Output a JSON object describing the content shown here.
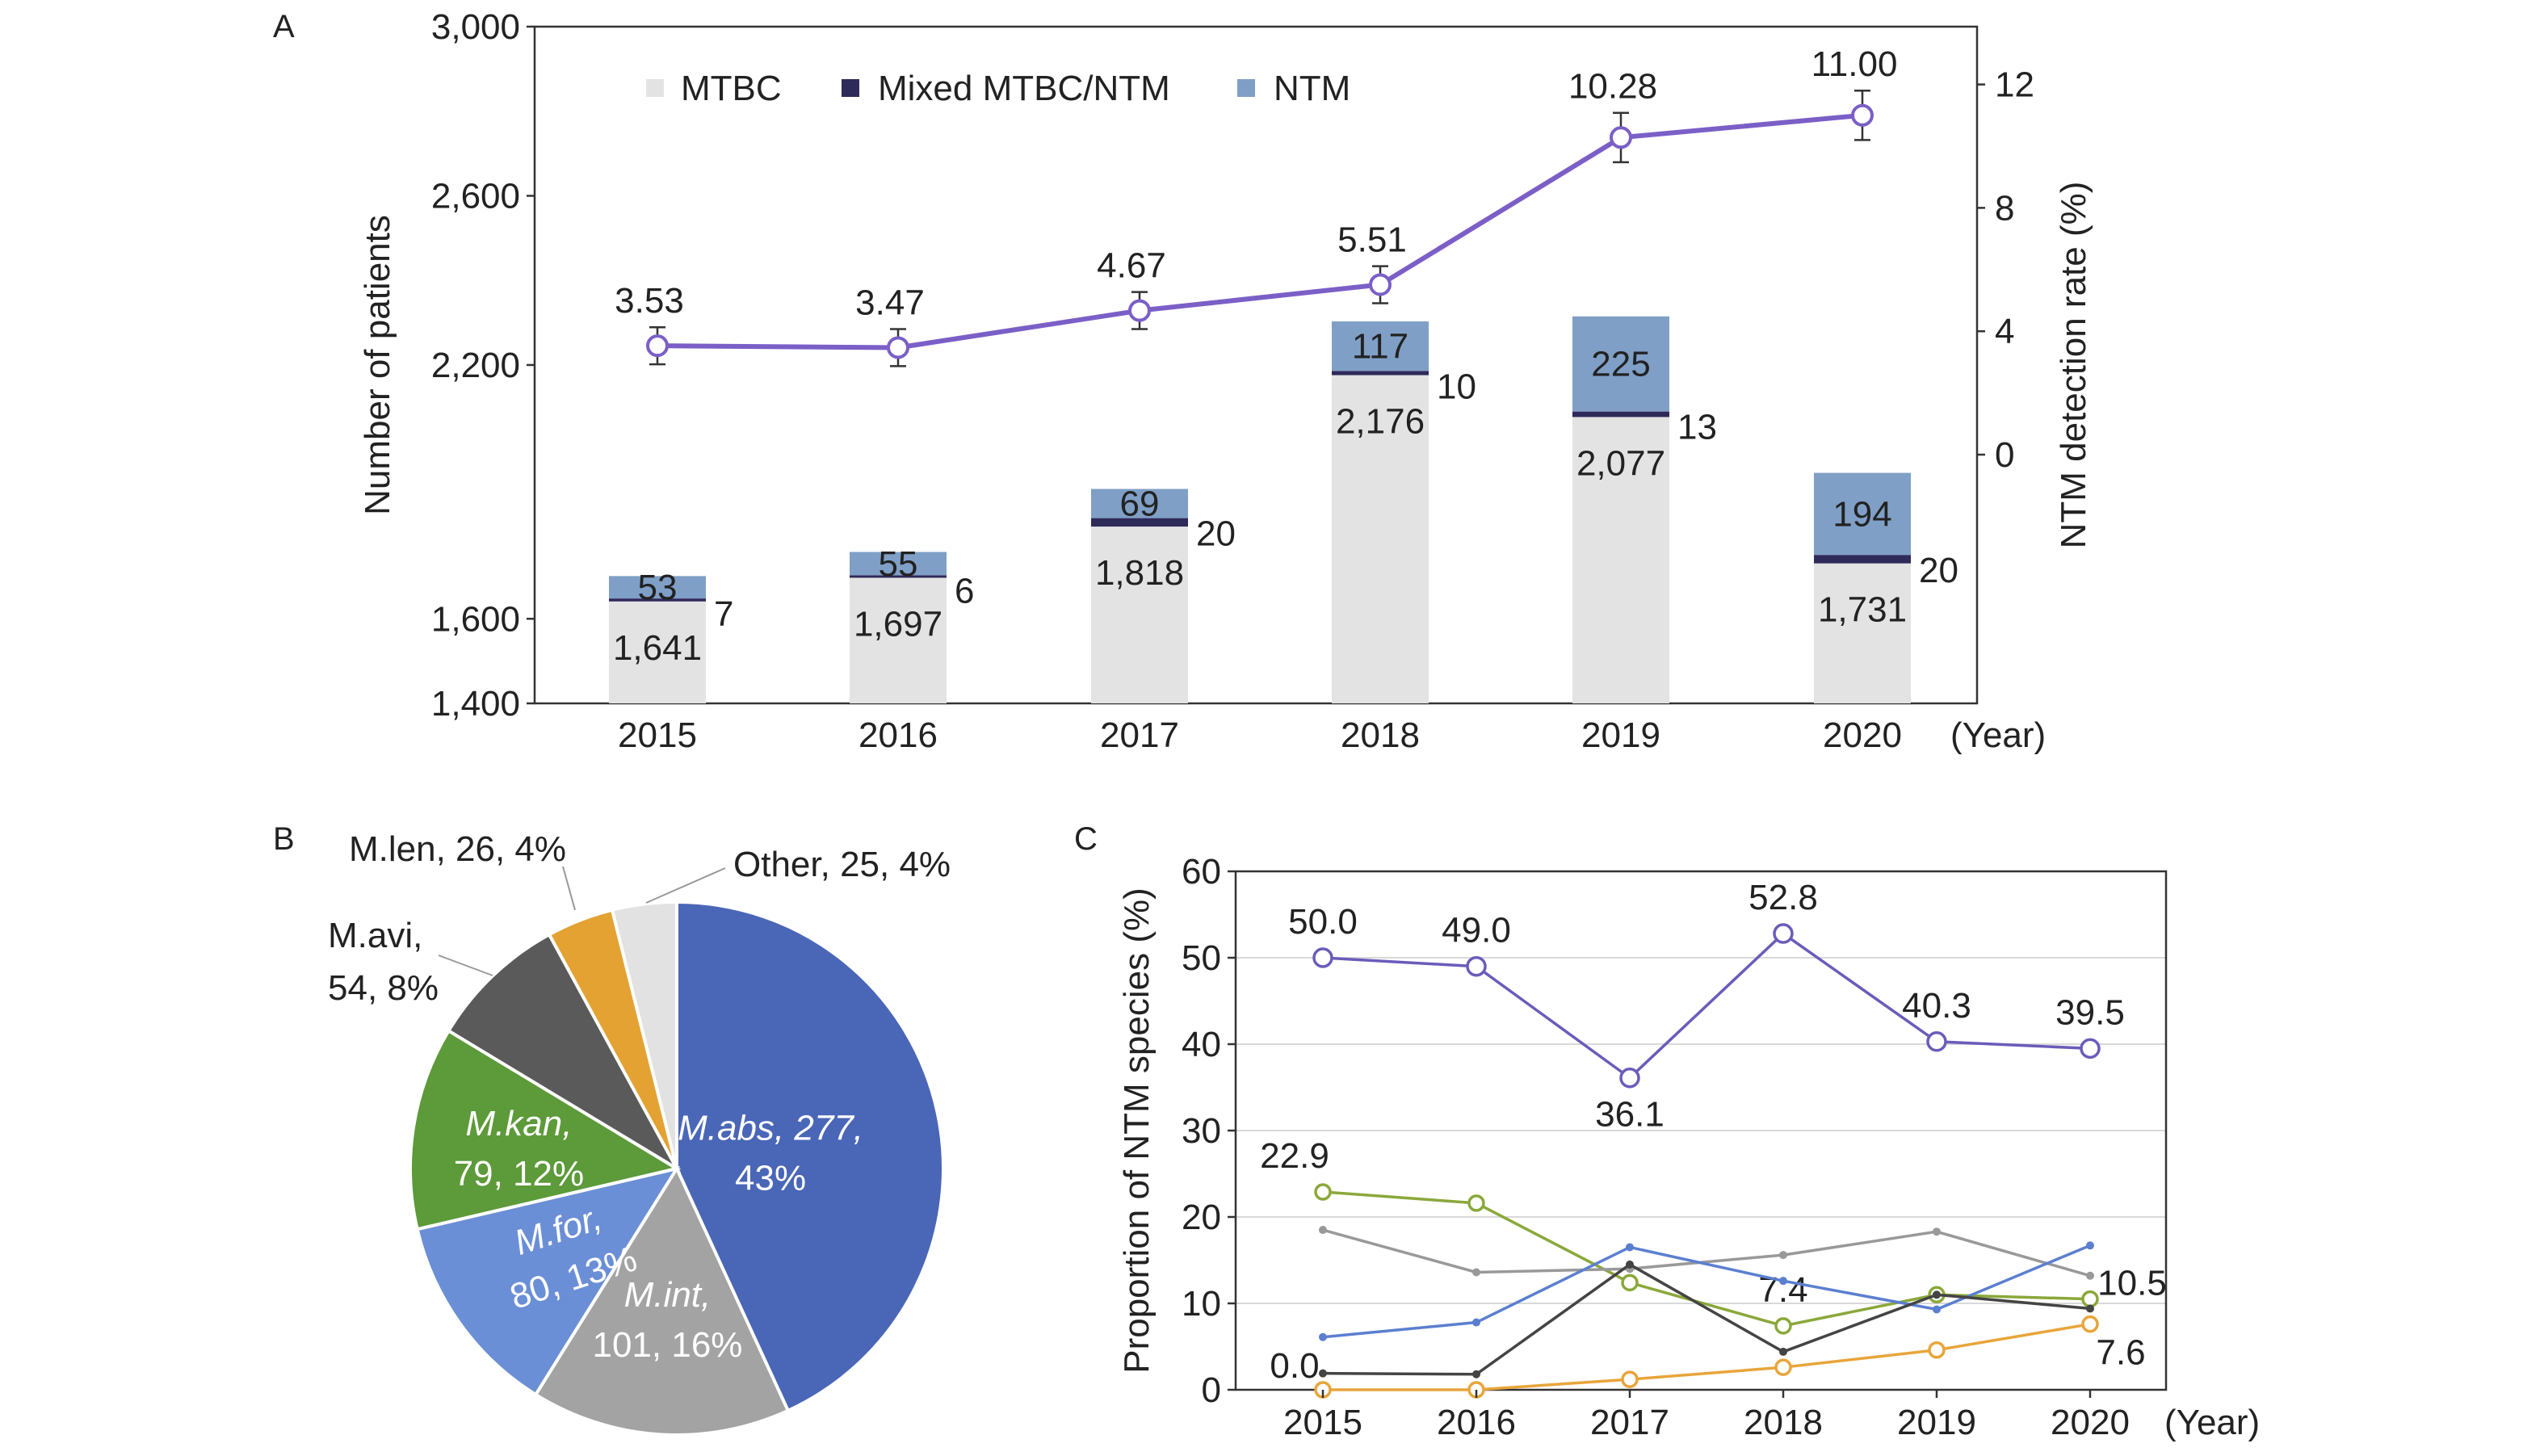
{
  "chart_data": [
    {
      "panel": "A",
      "type": "bar",
      "categories": [
        "2015",
        "2016",
        "2017",
        "2018",
        "2019",
        "2020"
      ],
      "x_unit": "(Year)",
      "ylabel": "Number of patients",
      "y2label": "NTM detection rate (%)",
      "ylim": [
        1400,
        3000
      ],
      "yticks": [
        "1,400",
        "1,600",
        "2,200",
        "2,600",
        "3,000"
      ],
      "yticks_values": [
        1400,
        1600,
        2200,
        2600,
        3000
      ],
      "y2ticks": [
        "0",
        "4",
        "8",
        "12"
      ],
      "y2ticks_values": [
        0,
        4,
        8,
        12
      ],
      "stacked": true,
      "legend_position": "top",
      "series": [
        {
          "name": "MTBC",
          "color": "#e3e3e3",
          "values": [
            1641,
            1697,
            1818,
            2176,
            2077,
            1731
          ],
          "labels": [
            "1,641",
            "1,697",
            "1,818",
            "2,176",
            "2,077",
            "1,731"
          ]
        },
        {
          "name": "Mixed MTBC/NTM",
          "color": "#2e2a5a",
          "values": [
            7,
            6,
            20,
            10,
            13,
            20
          ],
          "labels": [
            "7",
            "6",
            "20",
            "10",
            "13",
            "20"
          ]
        },
        {
          "name": "NTM",
          "color": "#7f9fc6",
          "values": [
            53,
            55,
            69,
            117,
            225,
            194
          ],
          "labels": [
            "53",
            "55",
            "69",
            "117",
            "225",
            "194"
          ]
        }
      ],
      "rate_line": {
        "color": "#7b5fc7",
        "values": [
          3.53,
          3.47,
          4.67,
          5.51,
          10.28,
          11.0
        ],
        "labels": [
          "3.53",
          "3.47",
          "4.67",
          "5.51",
          "10.28",
          "11.00"
        ],
        "error": [
          0.6,
          0.6,
          0.6,
          0.6,
          0.8,
          0.8
        ]
      }
    },
    {
      "panel": "B",
      "type": "pie",
      "slices": [
        {
          "species": "M.abs",
          "count": 277,
          "percent": 43,
          "color": "#4a66b7",
          "label_lines": [
            "M.abs, 277,",
            "43%"
          ]
        },
        {
          "species": "M.int",
          "count": 101,
          "percent": 16,
          "color": "#a3a3a3",
          "label_lines": [
            "M.int,",
            "101,  16%"
          ]
        },
        {
          "species": "M.for",
          "count": 80,
          "percent": 13,
          "color": "#6b8fd6",
          "label_lines": [
            "M.for,",
            "80, 13%"
          ]
        },
        {
          "species": "M.kan",
          "count": 79,
          "percent": 12,
          "color": "#5d9a3a",
          "label_lines": [
            "M.kan,",
            "79,  12%"
          ]
        },
        {
          "species": "M.avi",
          "count": 54,
          "percent": 8,
          "color": "#5a5a5a",
          "label_lines": [
            "M.avi,",
            "54, 8%"
          ]
        },
        {
          "species": "M.len",
          "count": 26,
          "percent": 4,
          "color": "#e3a232",
          "label_lines": [
            "M.len, 26, 4%"
          ]
        },
        {
          "species": "Other",
          "count": 25,
          "percent": 4,
          "color": "#e2e2e2",
          "label_lines": [
            "Other, 25, 4%"
          ]
        }
      ]
    },
    {
      "panel": "C",
      "type": "line",
      "x": [
        "2015",
        "2016",
        "2017",
        "2018",
        "2019",
        "2020"
      ],
      "x_unit": "(Year)",
      "ylabel": "Proportion of NTM species (%)",
      "ylim": [
        0,
        60
      ],
      "yticks": [
        "0",
        "10",
        "20",
        "30",
        "40",
        "50",
        "60"
      ],
      "grid": true,
      "series": [
        {
          "color": "#6a5cba",
          "marker": "circle",
          "values": [
            50.0,
            49.0,
            36.1,
            52.8,
            40.3,
            39.5
          ],
          "labels": [
            "50.0",
            "49.0",
            "36.1",
            "52.8",
            "40.3",
            "39.5"
          ]
        },
        {
          "color": "#8aa83a",
          "marker": "circle",
          "values": [
            22.9,
            21.6,
            12.4,
            7.4,
            11.0,
            10.5
          ],
          "labels": [
            "22.9",
            "",
            "",
            "7.4",
            "",
            "10.5"
          ]
        },
        {
          "color": "#999999",
          "marker": "dot",
          "values": [
            18.5,
            13.6,
            14.0,
            15.6,
            18.3,
            13.2
          ],
          "labels": [
            "",
            "",
            "",
            "",
            "",
            ""
          ]
        },
        {
          "color": "#5b7fd0",
          "marker": "dot",
          "values": [
            6.1,
            7.8,
            16.5,
            12.6,
            9.3,
            16.7
          ],
          "labels": [
            "",
            "",
            "",
            "",
            "",
            ""
          ]
        },
        {
          "color": "#444444",
          "marker": "dot",
          "values": [
            1.9,
            1.8,
            14.5,
            4.4,
            11.0,
            9.4
          ],
          "labels": [
            "",
            "",
            "",
            "",
            "",
            ""
          ]
        },
        {
          "color": "#e8a53a",
          "marker": "circle",
          "values": [
            0.0,
            0.0,
            1.2,
            2.6,
            4.6,
            7.6
          ],
          "labels": [
            "0.0",
            "",
            "",
            "",
            "",
            "7.6"
          ]
        }
      ]
    }
  ]
}
